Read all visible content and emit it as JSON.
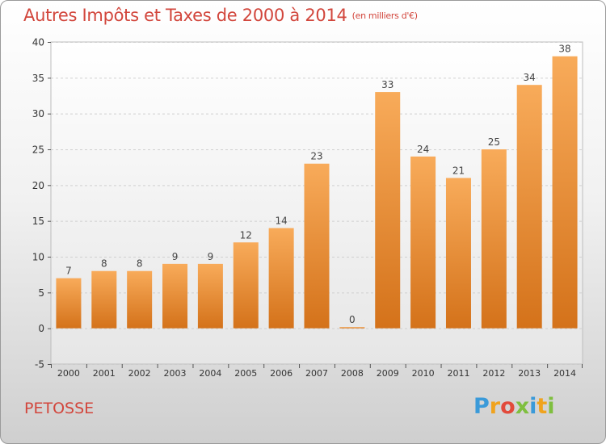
{
  "header": {
    "title": "Autres Impôts et Taxes de 2000 à 2014",
    "unit": "(en milliers d'€)"
  },
  "footer": {
    "commune": "PETOSSE",
    "brand_letters": [
      "P",
      "r",
      "o",
      "x",
      "i",
      "t",
      "i"
    ],
    "brand_colors": [
      "#3a9ad9",
      "#f0a31e",
      "#e24a3b",
      "#7fbf3f",
      "#3a9ad9",
      "#f0a31e",
      "#7fbf3f"
    ]
  },
  "colors": {
    "bar_light": "#f8ab5a",
    "bar_dark": "#d4721a",
    "text_accent": "#d2463c"
  },
  "chart_data": {
    "type": "bar",
    "categories": [
      "2000",
      "2001",
      "2002",
      "2003",
      "2004",
      "2005",
      "2006",
      "2007",
      "2008",
      "2009",
      "2010",
      "2011",
      "2012",
      "2013",
      "2014"
    ],
    "values": [
      7,
      8,
      8,
      9,
      9,
      12,
      14,
      23,
      0,
      33,
      24,
      21,
      25,
      34,
      38
    ],
    "ylim": [
      -5,
      40
    ],
    "yticks": [
      -5,
      0,
      5,
      10,
      15,
      20,
      25,
      30,
      35,
      40
    ],
    "grid": true
  }
}
